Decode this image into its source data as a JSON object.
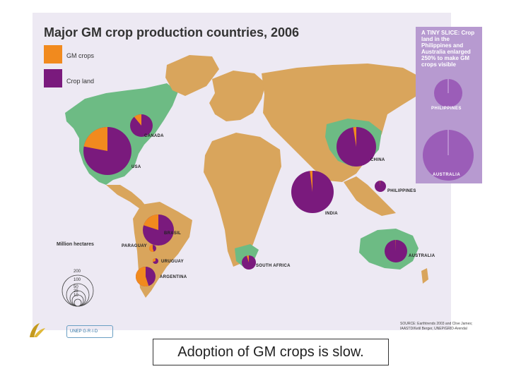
{
  "title": "Major GM crop production countries, 2006",
  "colors": {
    "gm_crops": "#f18a1e",
    "crop_land": "#7a1a7d",
    "land_grey": "#d9a55c",
    "land_green": "#6dbb84",
    "background": "#ede9f3",
    "inset": "#b79ad0"
  },
  "legend": {
    "gm_label": "GM crops",
    "crop_label": "Crop land"
  },
  "inset": {
    "text": "A TINY SLICE: Crop land in the Philippines and Australia enlarged 250% to make GM crops visible",
    "philippines_label": "PHILIPPINES",
    "australia_label": "AUSTRALIA"
  },
  "scale": {
    "label": "Million hectares",
    "ticks": [
      "200",
      "100",
      "50",
      "25",
      "10"
    ]
  },
  "countries": [
    {
      "name": "CANADA",
      "gm_share": 0.11
    },
    {
      "name": "USA",
      "gm_share": 0.22
    },
    {
      "name": "CHINA",
      "gm_share": 0.026
    },
    {
      "name": "PHILIPPINES",
      "gm_share": 0.01
    },
    {
      "name": "INDIA",
      "gm_share": 0.02
    },
    {
      "name": "BRASIL",
      "gm_share": 0.2
    },
    {
      "name": "PARAGUAY",
      "gm_share": 0.55
    },
    {
      "name": "URUGUAY",
      "gm_share": 0.3
    },
    {
      "name": "SOUTH AFRICA",
      "gm_share": 0.05
    },
    {
      "name": "ARGENTINA",
      "gm_share": 0.55
    },
    {
      "name": "AUSTRALIA",
      "gm_share": 0.004
    }
  ],
  "source": "SOURCE: Earthtrends 2003 and Clive James; IAASTD/Ketil Berger, UNEP/GRID-Arendal",
  "logos": {
    "grid_text": "UNEP G·R·I·D"
  },
  "caption": "Adoption of GM crops is slow."
}
